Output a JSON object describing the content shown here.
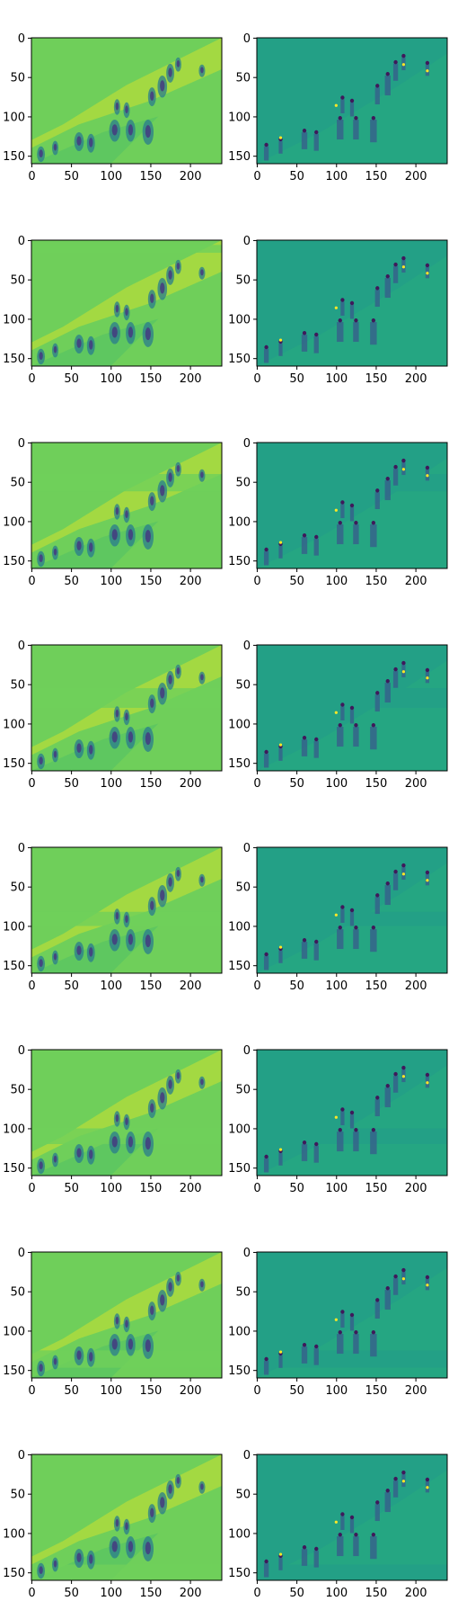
{
  "figure": {
    "rows": 8,
    "cols": 2,
    "x_ticks": [
      "0",
      "50",
      "100",
      "150",
      "200"
    ],
    "y_ticks": [
      "0",
      "50",
      "100",
      "150"
    ],
    "left_panel": {
      "colors": {
        "base": "#6fcf5a",
        "bright": "#cde22f",
        "mid": "#3fb76d",
        "dark": "#2a7c8e",
        "darker": "#463480"
      }
    },
    "right_panel": {
      "colors": {
        "base": "#23a086",
        "light": "#2ab27a",
        "dark": "#39568c",
        "darker": "#440154",
        "accent": "#fde725"
      }
    },
    "rows_spec": [
      {
        "band_y": null,
        "band_h": 0
      },
      {
        "band_y": 6,
        "band_h": 10
      },
      {
        "band_y": 40,
        "band_h": 22
      },
      {
        "band_y": 55,
        "band_h": 25
      },
      {
        "band_y": 82,
        "band_h": 18
      },
      {
        "band_y": 100,
        "band_h": 20
      },
      {
        "band_y": 125,
        "band_h": 22
      },
      {
        "band_y": 140,
        "band_h": 20
      }
    ]
  }
}
